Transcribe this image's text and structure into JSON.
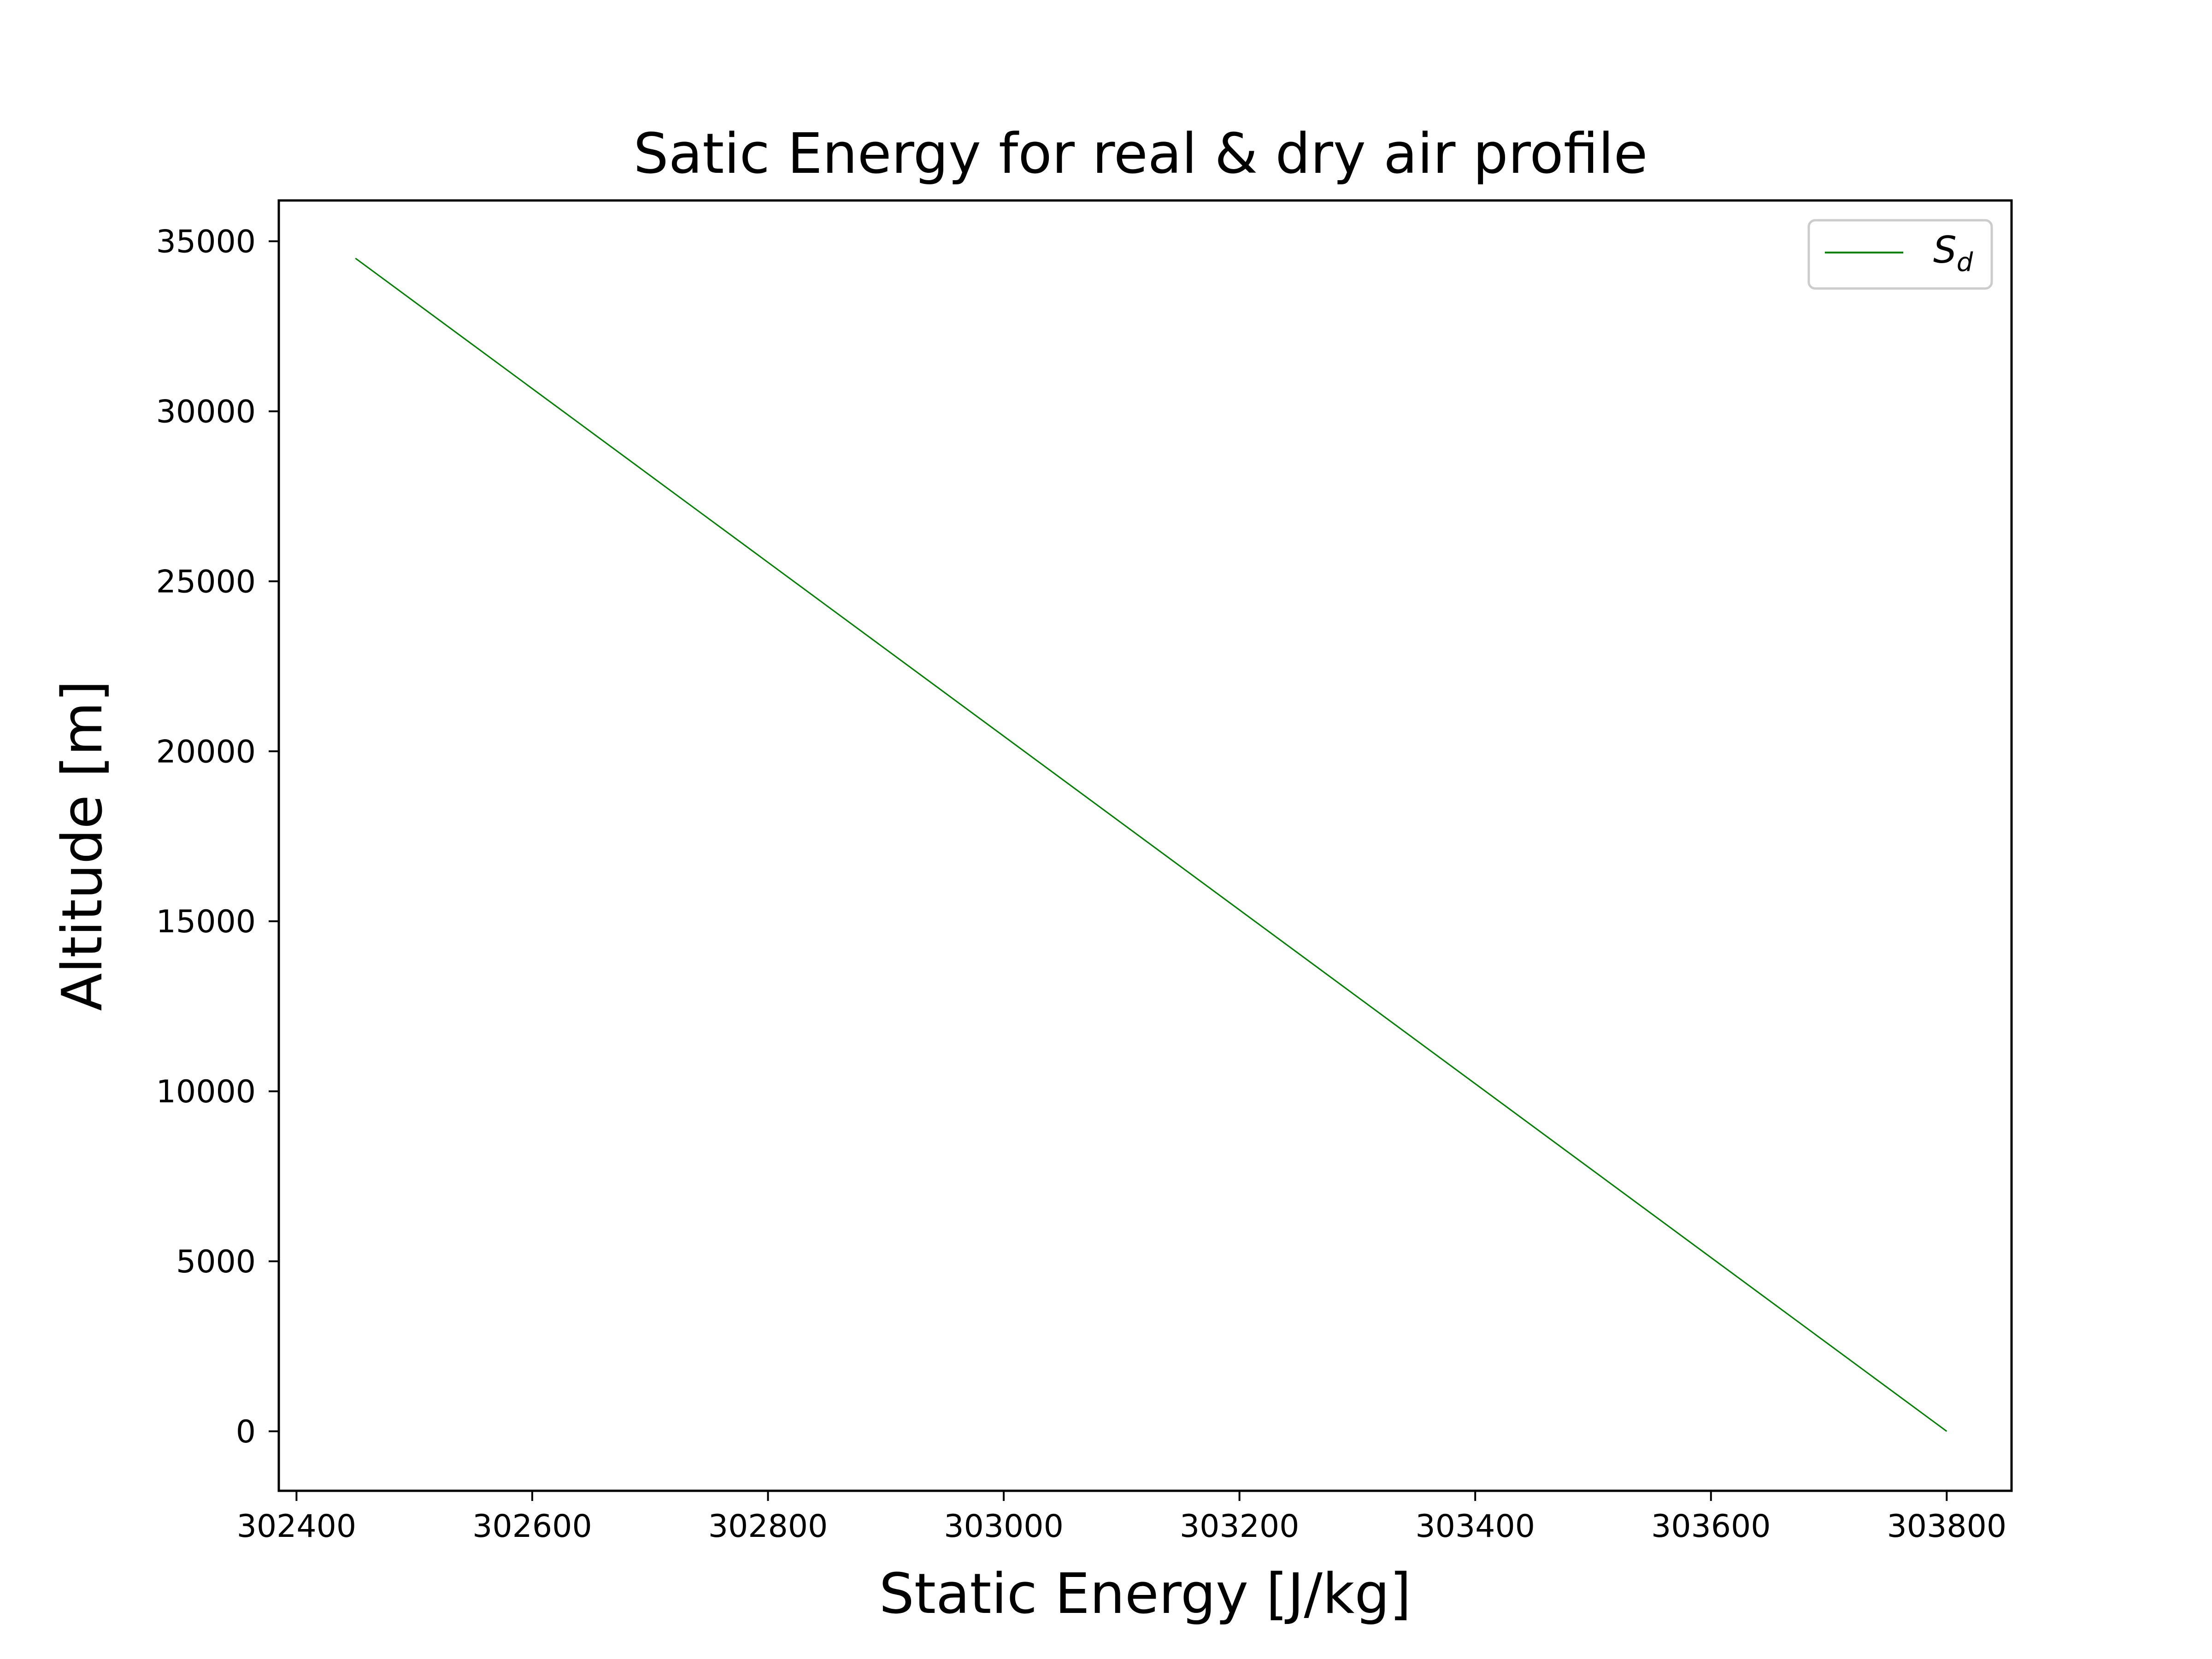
{
  "chart_data": {
    "type": "line",
    "title": "Satic Energy for real & dry air profile",
    "xlabel": "Static Energy [J/kg]",
    "ylabel": "Altitude [m]",
    "xlim": [
      302385,
      303855
    ],
    "ylim": [
      -1750,
      36200
    ],
    "xticks": [
      302400,
      302600,
      302800,
      303000,
      303200,
      303400,
      303600,
      303800
    ],
    "yticks": [
      0,
      5000,
      10000,
      15000,
      20000,
      25000,
      30000,
      35000
    ],
    "grid": false,
    "legend_position": "top-right",
    "series": [
      {
        "name": "S_d",
        "label_main": "S",
        "label_sub": "d",
        "color": "#008000",
        "x": [
          302450,
          303800
        ],
        "y": [
          34500,
          0
        ]
      }
    ]
  }
}
